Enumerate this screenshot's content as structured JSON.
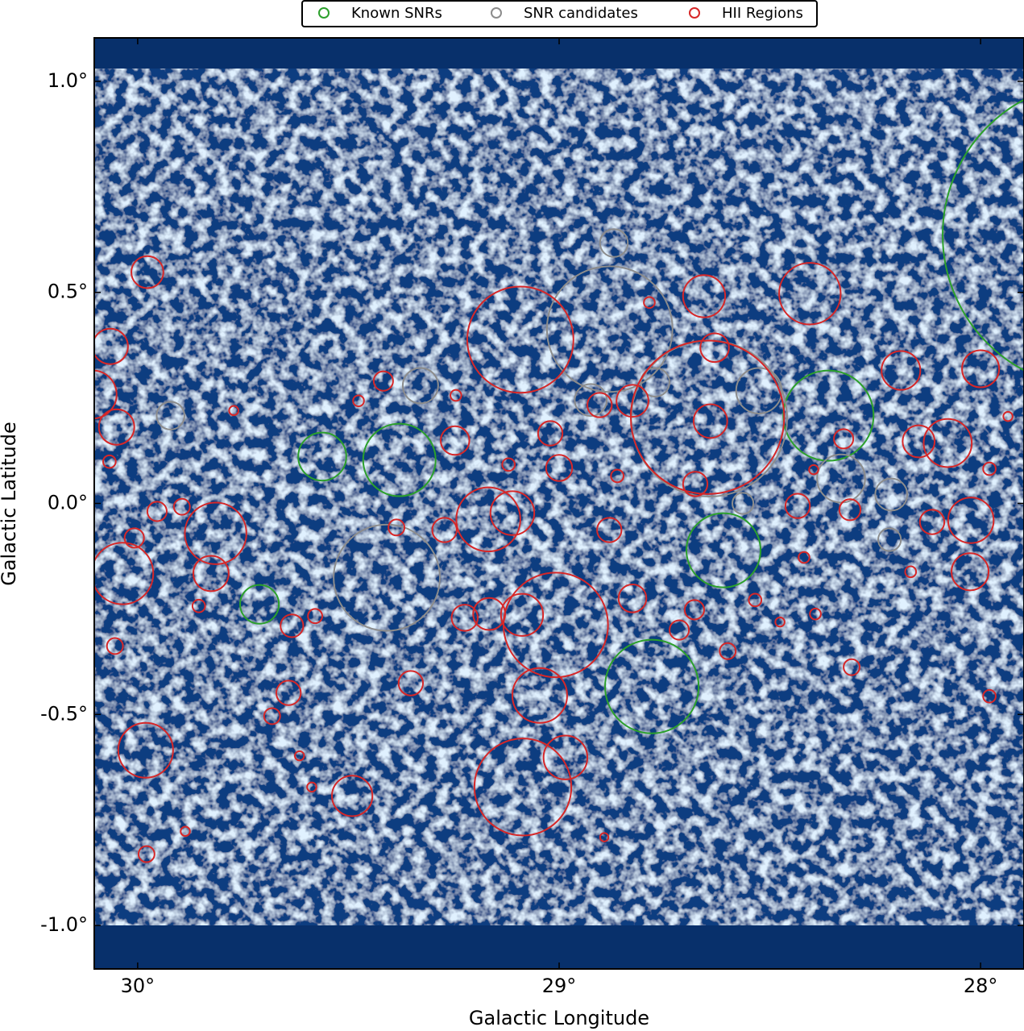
{
  "chart_data": {
    "type": "scatter",
    "xlabel": "Galactic Longitude",
    "ylabel": "Galactic Latitude",
    "xlim": [
      30.103,
      27.897
    ],
    "ylim": [
      -1.103,
      1.103
    ],
    "xticks": [
      {
        "value": 30,
        "label": "30°"
      },
      {
        "value": 29,
        "label": "29°"
      },
      {
        "value": 28,
        "label": "28°"
      }
    ],
    "yticks": [
      {
        "value": 1.0,
        "label": "1.0°"
      },
      {
        "value": 0.5,
        "label": "0.5°"
      },
      {
        "value": 0.0,
        "label": "0.0°"
      },
      {
        "value": -0.5,
        "label": "-0.5°"
      },
      {
        "value": -1.0,
        "label": "-1.0°"
      }
    ],
    "grid": false,
    "legend": "top",
    "series": [
      {
        "name": "Known SNRs",
        "color": "#2ca02c",
        "x": [
          27.727,
          28.361,
          29.379,
          29.562,
          29.711,
          28.61,
          28.78
        ],
        "y": [
          0.636,
          0.208,
          0.103,
          0.111,
          -0.239,
          -0.111,
          -0.434
        ],
        "r": [
          0.363,
          0.107,
          0.086,
          0.057,
          0.046,
          0.088,
          0.111
        ]
      },
      {
        "name": "SNR candidates",
        "color": "#8c8c8c",
        "x": [
          28.87,
          28.88,
          29.409,
          29.329,
          29.922,
          28.644,
          28.526,
          28.925,
          28.331,
          28.212,
          28.216,
          28.564,
          28.772
        ],
        "y": [
          0.617,
          0.413,
          -0.176,
          0.279,
          0.208,
          0.201,
          0.267,
          0.245,
          0.059,
          0.021,
          -0.086,
          0.0,
          0.287
        ],
        "r": [
          0.033,
          0.149,
          0.126,
          0.042,
          0.033,
          0.185,
          0.054,
          0.038,
          0.057,
          0.038,
          0.027,
          0.025,
          0.034
        ]
      },
      {
        "name": "HII Regions",
        "color": "#d62728",
        "x": [
          29.977,
          30.065,
          30.05,
          30.107,
          30.036,
          29.815,
          29.826,
          29.981,
          29.491,
          29.634,
          29.642,
          29.681,
          30.054,
          29.855,
          29.954,
          30.008,
          29.895,
          30.067,
          29.417,
          29.476,
          29.247,
          29.386,
          29.352,
          29.272,
          29.224,
          29.166,
          29.168,
          29.111,
          29.092,
          29.021,
          29.0,
          29.008,
          29.088,
          29.046,
          29.086,
          28.985,
          28.881,
          28.904,
          28.826,
          28.826,
          28.679,
          28.715,
          28.656,
          28.631,
          28.641,
          28.677,
          28.648,
          28.405,
          28.434,
          28.31,
          28.189,
          28.147,
          28.078,
          28.0,
          28.023,
          28.025,
          28.115,
          27.979,
          27.935,
          28.6,
          28.306,
          27.979,
          29.979,
          29.579,
          29.772,
          29.245,
          29.12,
          28.786,
          28.535,
          28.166,
          28.419,
          28.862,
          28.476,
          28.392,
          28.325,
          28.396,
          29.616,
          29.587,
          29.887,
          28.893
        ],
        "y": [
          0.548,
          0.372,
          0.181,
          0.258,
          -0.166,
          -0.071,
          -0.166,
          -0.585,
          -0.693,
          -0.29,
          -0.449,
          -0.504,
          -0.338,
          -0.243,
          -0.019,
          -0.082,
          -0.008,
          0.099,
          0.29,
          0.243,
          0.149,
          -0.057,
          -0.426,
          -0.063,
          -0.271,
          -0.262,
          -0.038,
          -0.023,
          0.388,
          0.166,
          0.084,
          -0.288,
          -0.264,
          -0.455,
          -0.672,
          -0.602,
          -0.063,
          0.233,
          0.243,
          -0.225,
          -0.252,
          -0.3,
          0.491,
          0.369,
          0.195,
          0.046,
          0.204,
          0.497,
          -0.006,
          -0.015,
          0.315,
          0.147,
          0.143,
          0.319,
          -0.04,
          -0.162,
          -0.044,
          0.082,
          0.206,
          -0.35,
          -0.388,
          -0.457,
          -0.831,
          -0.267,
          0.22,
          0.256,
          0.092,
          0.476,
          -0.229,
          -0.162,
          -0.128,
          0.065,
          -0.281,
          -0.262,
          0.153,
          0.08,
          -0.598,
          -0.672,
          -0.777,
          -0.791
        ],
        "r": [
          0.038,
          0.042,
          0.042,
          0.057,
          0.073,
          0.073,
          0.042,
          0.065,
          0.048,
          0.027,
          0.029,
          0.019,
          0.019,
          0.015,
          0.023,
          0.023,
          0.019,
          0.015,
          0.023,
          0.013,
          0.034,
          0.019,
          0.029,
          0.029,
          0.031,
          0.038,
          0.076,
          0.052,
          0.126,
          0.029,
          0.031,
          0.124,
          0.05,
          0.065,
          0.115,
          0.052,
          0.029,
          0.029,
          0.038,
          0.033,
          0.023,
          0.023,
          0.05,
          0.034,
          0.04,
          0.029,
          0.182,
          0.073,
          0.029,
          0.025,
          0.046,
          0.038,
          0.057,
          0.044,
          0.054,
          0.044,
          0.029,
          0.015,
          0.011,
          0.019,
          0.019,
          0.015,
          0.019,
          0.017,
          0.011,
          0.013,
          0.015,
          0.013,
          0.015,
          0.013,
          0.013,
          0.015,
          0.011,
          0.013,
          0.023,
          0.011,
          0.011,
          0.011,
          0.011,
          0.01
        ]
      }
    ]
  }
}
